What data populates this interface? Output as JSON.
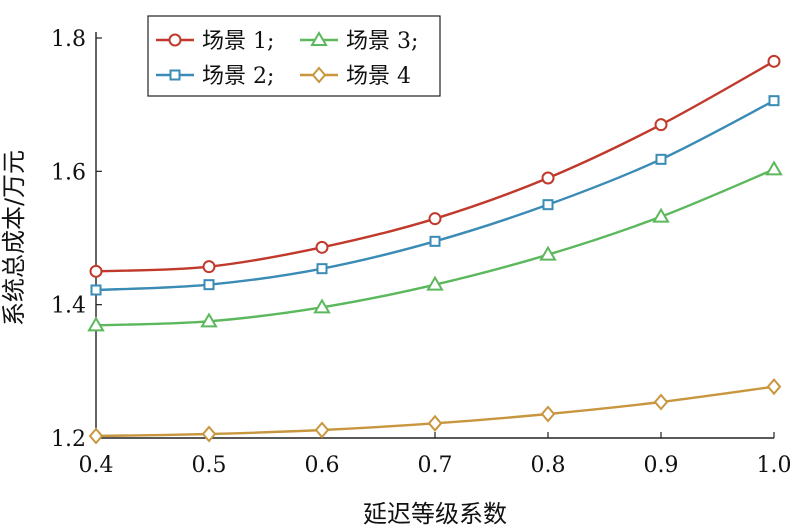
{
  "chart_data": {
    "type": "line",
    "title": "",
    "xlabel": "延迟等级系数",
    "ylabel": "系统总成本/万元",
    "x": [
      0.4,
      0.5,
      0.6,
      0.7,
      0.8,
      0.9,
      1.0
    ],
    "xlim": [
      0.4,
      1.0
    ],
    "ylim": [
      1.2,
      1.8
    ],
    "xticks": [
      "0.4",
      "0.5",
      "0.6",
      "0.7",
      "0.8",
      "0.9",
      "1.0"
    ],
    "yticks": [
      "1.2",
      "1.4",
      "1.6",
      "1.8"
    ],
    "grid": false,
    "legend_position": "top-left",
    "series": [
      {
        "name": "场景 1;",
        "color": "#c0392b",
        "marker": "circle",
        "values": [
          1.45,
          1.457,
          1.486,
          1.529,
          1.59,
          1.67,
          1.765
        ]
      },
      {
        "name": "场景 2;",
        "color": "#3a8bb5",
        "marker": "square",
        "values": [
          1.422,
          1.43,
          1.454,
          1.495,
          1.55,
          1.618,
          1.706
        ]
      },
      {
        "name": "场景 3;",
        "color": "#5cb85c",
        "marker": "triangle",
        "values": [
          1.369,
          1.375,
          1.396,
          1.43,
          1.475,
          1.532,
          1.603
        ]
      },
      {
        "name": "场景 4",
        "color": "#c8963e",
        "marker": "diamond",
        "values": [
          1.203,
          1.206,
          1.212,
          1.222,
          1.236,
          1.254,
          1.277
        ]
      }
    ]
  }
}
